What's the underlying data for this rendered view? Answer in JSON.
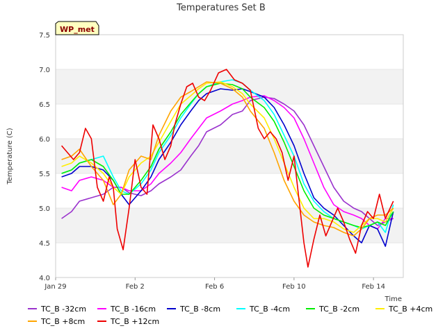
{
  "chart_data": {
    "type": "line",
    "title": "Temperatures Set B",
    "xlabel": "Time",
    "ylabel": "Temperature (C)",
    "badge": "WP_met",
    "ylim": [
      4.0,
      7.5
    ],
    "yticks": [
      4.0,
      4.5,
      5.0,
      5.5,
      6.0,
      6.5,
      7.0,
      7.5
    ],
    "ytick_labels": [
      "4.0",
      "4.5",
      "5.0",
      "5.5",
      "6.0",
      "6.5",
      "7.0",
      "7.5"
    ],
    "xlim": [
      0,
      17.5
    ],
    "xticks": [
      0,
      4,
      8,
      12,
      16
    ],
    "xtick_labels": [
      "Jan 29",
      "Feb 2",
      "Feb 6",
      "Feb 10",
      "Feb 14"
    ],
    "grid": "horizontal bands",
    "legend_position": "bottom",
    "series": [
      {
        "name": "TC_B -32cm",
        "color": "#9a32cd",
        "x": [
          0.3,
          0.8,
          1.2,
          1.8,
          2.4,
          2.9,
          3.3,
          3.7,
          4.3,
          4.8,
          5.2,
          5.8,
          6.3,
          6.8,
          7.2,
          7.6,
          8.3,
          8.9,
          9.4,
          9.8,
          10.5,
          11.0,
          11.5,
          12.0,
          12.5,
          13.0,
          13.5,
          14.0,
          14.5,
          15.0,
          15.4,
          15.8,
          16.2,
          16.6,
          17.0
        ],
        "y": [
          4.85,
          4.95,
          5.1,
          5.15,
          5.2,
          5.3,
          5.3,
          5.22,
          5.18,
          5.25,
          5.35,
          5.45,
          5.55,
          5.75,
          5.9,
          6.1,
          6.2,
          6.35,
          6.4,
          6.55,
          6.6,
          6.58,
          6.5,
          6.4,
          6.2,
          5.9,
          5.6,
          5.3,
          5.1,
          5.0,
          4.95,
          4.85,
          4.75,
          4.8,
          4.85
        ]
      },
      {
        "name": "TC_B -16cm",
        "color": "#ff00ff",
        "x": [
          0.3,
          0.8,
          1.2,
          1.8,
          2.4,
          2.9,
          3.3,
          3.7,
          4.3,
          4.8,
          5.2,
          5.8,
          6.3,
          6.8,
          7.2,
          7.6,
          8.3,
          8.9,
          9.4,
          9.8,
          10.5,
          11.0,
          11.5,
          12.0,
          12.5,
          13.0,
          13.5,
          14.0,
          14.5,
          15.0,
          15.4,
          15.8,
          16.2,
          16.6,
          17.0
        ],
        "y": [
          5.3,
          5.25,
          5.4,
          5.45,
          5.4,
          5.3,
          5.3,
          5.25,
          5.25,
          5.35,
          5.5,
          5.65,
          5.8,
          6.0,
          6.15,
          6.3,
          6.4,
          6.5,
          6.55,
          6.6,
          6.62,
          6.55,
          6.45,
          6.3,
          6.0,
          5.65,
          5.3,
          5.05,
          4.95,
          4.9,
          4.85,
          4.75,
          4.7,
          4.85,
          4.85
        ]
      },
      {
        "name": "TC_B -8cm",
        "color": "#0000cd",
        "x": [
          0.3,
          0.8,
          1.2,
          1.8,
          2.4,
          2.9,
          3.3,
          3.7,
          4.3,
          4.8,
          5.2,
          5.8,
          6.3,
          6.8,
          7.2,
          7.6,
          8.3,
          8.9,
          9.4,
          9.8,
          10.5,
          11.0,
          11.5,
          12.0,
          12.5,
          13.0,
          13.5,
          14.0,
          14.5,
          15.0,
          15.4,
          15.8,
          16.2,
          16.6,
          17.0
        ],
        "y": [
          5.45,
          5.5,
          5.6,
          5.6,
          5.55,
          5.4,
          5.2,
          5.05,
          5.25,
          5.45,
          5.7,
          5.95,
          6.2,
          6.4,
          6.55,
          6.65,
          6.72,
          6.7,
          6.72,
          6.68,
          6.6,
          6.45,
          6.2,
          5.9,
          5.5,
          5.15,
          5.0,
          4.9,
          4.75,
          4.6,
          4.5,
          4.75,
          4.7,
          4.45,
          4.95
        ]
      },
      {
        "name": "TC_B -4cm",
        "color": "#00ffff",
        "x": [
          0.3,
          0.8,
          1.2,
          1.8,
          2.4,
          2.9,
          3.3,
          3.7,
          4.3,
          4.8,
          5.2,
          5.8,
          6.3,
          6.8,
          7.2,
          7.6,
          8.3,
          8.9,
          9.4,
          9.8,
          10.5,
          11.0,
          11.5,
          12.0,
          12.5,
          13.0,
          13.5,
          14.0,
          14.5,
          15.0,
          15.4,
          15.8,
          16.2,
          16.6,
          17.0
        ],
        "y": [
          5.5,
          5.55,
          5.65,
          5.7,
          5.75,
          5.45,
          5.25,
          5.2,
          5.35,
          5.55,
          5.8,
          6.05,
          6.3,
          6.5,
          6.65,
          6.75,
          6.82,
          6.85,
          6.8,
          6.7,
          6.55,
          6.35,
          6.05,
          5.75,
          5.35,
          5.1,
          4.95,
          4.85,
          4.8,
          4.75,
          4.7,
          4.75,
          4.8,
          4.65,
          5.05
        ]
      },
      {
        "name": "TC_B -2cm",
        "color": "#00ee00",
        "x": [
          0.3,
          0.8,
          1.2,
          1.8,
          2.4,
          2.9,
          3.3,
          3.7,
          4.3,
          4.8,
          5.2,
          5.8,
          6.3,
          6.8,
          7.2,
          7.6,
          8.3,
          8.9,
          9.4,
          9.8,
          10.5,
          11.0,
          11.5,
          12.0,
          12.5,
          13.0,
          13.5,
          14.0,
          14.5,
          15.0,
          15.4,
          15.8,
          16.2,
          16.6,
          17.0
        ],
        "y": [
          5.5,
          5.55,
          5.65,
          5.7,
          5.6,
          5.4,
          5.2,
          5.2,
          5.4,
          5.6,
          5.85,
          6.1,
          6.35,
          6.52,
          6.65,
          6.75,
          6.8,
          6.78,
          6.72,
          6.6,
          6.45,
          6.25,
          5.95,
          5.6,
          5.25,
          5.0,
          4.9,
          4.85,
          4.8,
          4.75,
          4.72,
          4.75,
          4.8,
          4.75,
          4.95
        ]
      },
      {
        "name": "TC_B +4cm",
        "color": "#ffee00",
        "x": [
          0.3,
          0.8,
          1.2,
          1.8,
          2.4,
          2.9,
          3.3,
          3.7,
          4.3,
          4.8,
          5.2,
          5.8,
          6.3,
          6.8,
          7.2,
          7.6,
          8.3,
          8.9,
          9.4,
          9.8,
          10.5,
          11.0,
          11.5,
          12.0,
          12.5,
          13.0,
          13.5,
          14.0,
          14.5,
          15.0,
          15.4,
          15.8,
          16.2,
          16.6,
          17.0
        ],
        "y": [
          5.6,
          5.65,
          5.75,
          5.65,
          5.5,
          5.3,
          5.2,
          5.45,
          5.65,
          5.75,
          5.95,
          6.25,
          6.5,
          6.62,
          6.72,
          6.8,
          6.82,
          6.75,
          6.65,
          6.5,
          6.3,
          6.0,
          5.65,
          5.3,
          5.0,
          4.85,
          4.85,
          4.8,
          4.7,
          4.65,
          4.75,
          4.85,
          4.85,
          4.8,
          5.0
        ]
      },
      {
        "name": "TC_B +8cm",
        "color": "#ffa500",
        "x": [
          0.3,
          0.8,
          1.2,
          1.8,
          2.4,
          2.9,
          3.3,
          3.7,
          4.3,
          4.8,
          5.2,
          5.8,
          6.3,
          6.8,
          7.2,
          7.6,
          8.3,
          8.9,
          9.4,
          9.8,
          10.5,
          11.0,
          11.5,
          12.0,
          12.5,
          13.0,
          13.5,
          14.0,
          14.5,
          15.0,
          15.4,
          15.8,
          16.2,
          16.6,
          17.0
        ],
        "y": [
          5.7,
          5.75,
          5.85,
          5.6,
          5.4,
          5.05,
          5.2,
          5.55,
          5.75,
          5.7,
          6.05,
          6.4,
          6.6,
          6.68,
          6.75,
          6.82,
          6.8,
          6.72,
          6.6,
          6.4,
          6.15,
          5.8,
          5.4,
          5.1,
          4.9,
          4.8,
          4.75,
          4.72,
          4.65,
          4.6,
          4.7,
          4.85,
          4.9,
          4.9,
          5.0
        ]
      },
      {
        "name": "TC_B +12cm",
        "color": "#ee0000",
        "x": [
          0.3,
          0.6,
          0.9,
          1.2,
          1.5,
          1.8,
          2.1,
          2.4,
          2.7,
          2.9,
          3.1,
          3.4,
          3.7,
          4.0,
          4.3,
          4.6,
          4.9,
          5.2,
          5.5,
          5.8,
          6.0,
          6.3,
          6.6,
          6.9,
          7.2,
          7.5,
          7.8,
          8.2,
          8.6,
          9.0,
          9.4,
          9.8,
          10.2,
          10.5,
          10.8,
          11.1,
          11.4,
          11.7,
          12.0,
          12.3,
          12.5,
          12.7,
          13.0,
          13.3,
          13.6,
          13.9,
          14.2,
          14.5,
          14.8,
          15.1,
          15.4,
          15.7,
          16.0,
          16.3,
          16.6,
          17.0
        ],
        "y": [
          5.9,
          5.8,
          5.7,
          5.8,
          6.15,
          6.0,
          5.3,
          5.1,
          5.45,
          5.3,
          4.7,
          4.4,
          5.0,
          5.7,
          5.3,
          5.2,
          6.2,
          6.0,
          5.7,
          5.9,
          6.2,
          6.5,
          6.75,
          6.8,
          6.6,
          6.55,
          6.7,
          6.95,
          7.0,
          6.85,
          6.8,
          6.7,
          6.15,
          6.0,
          6.1,
          6.0,
          5.8,
          5.4,
          5.75,
          5.0,
          4.5,
          4.15,
          4.55,
          4.9,
          4.6,
          4.8,
          5.0,
          4.8,
          4.55,
          4.35,
          4.75,
          4.95,
          4.85,
          5.2,
          4.85,
          5.1
        ]
      }
    ]
  }
}
